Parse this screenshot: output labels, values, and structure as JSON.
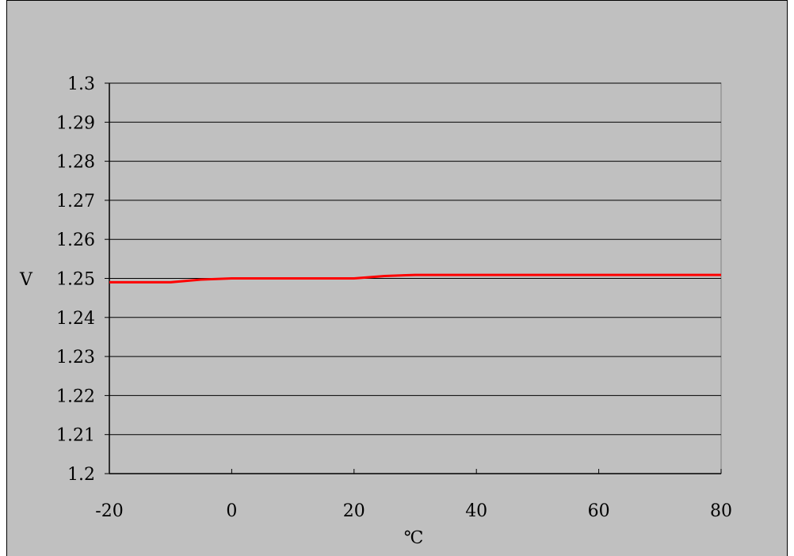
{
  "chart_data": {
    "type": "line",
    "title": "",
    "xlabel": "℃",
    "ylabel": "V",
    "xlim": [
      -20,
      80
    ],
    "ylim": [
      1.2,
      1.3
    ],
    "x_ticks": [
      "-20",
      "0",
      "20",
      "40",
      "60",
      "80"
    ],
    "y_ticks": [
      "1.2",
      "1.21",
      "1.22",
      "1.23",
      "1.24",
      "1.25",
      "1.26",
      "1.27",
      "1.28",
      "1.29",
      "1.3"
    ],
    "grid": "horizontal",
    "legend": "none",
    "series": [
      {
        "color": "#ff0000",
        "x": [
          -20,
          -10,
          -5,
          0,
          10,
          20,
          25,
          30,
          40,
          50,
          60,
          70,
          80
        ],
        "y": [
          1.249,
          1.249,
          1.2497,
          1.25,
          1.25,
          1.25,
          1.2506,
          1.2509,
          1.2509,
          1.2509,
          1.2509,
          1.2509,
          1.2509
        ]
      }
    ],
    "colors": {
      "background": "#c0c0c0",
      "plot_area": "#c0c0c0",
      "grid": "#000000",
      "axis": "#000000"
    }
  }
}
